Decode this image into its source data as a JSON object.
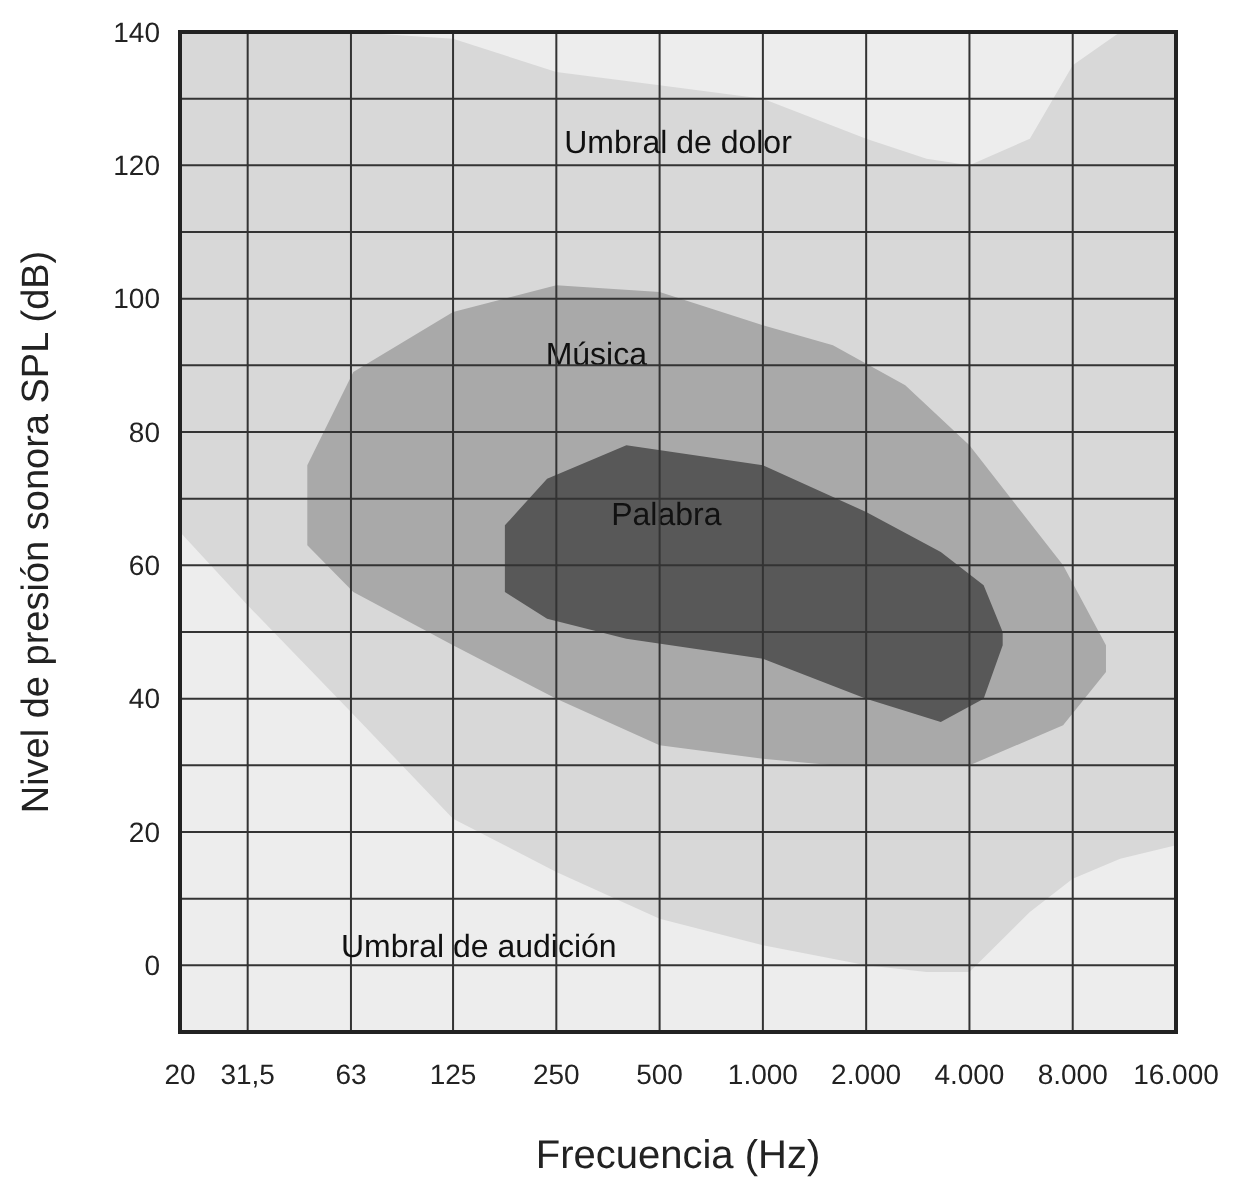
{
  "chart_data": {
    "type": "area",
    "xlabel": "Frecuencia  (Hz)",
    "ylabel": "Nivel de presión sonora SPL (dB)",
    "log": "x",
    "grid": true,
    "xlim": [
      20,
      16000
    ],
    "ylim": [
      -10,
      140
    ],
    "xticks": [
      20,
      {
        "value": 31.5,
        "label": "31,5"
      },
      63,
      125,
      250,
      500,
      {
        "value": 1000,
        "label": "1.000"
      },
      {
        "value": 2000,
        "label": "2.000"
      },
      {
        "value": 4000,
        "label": "4.000"
      },
      {
        "value": 8000,
        "label": "8.000"
      },
      {
        "value": 16000,
        "label": "16.000"
      }
    ],
    "yticks": [
      {
        "value": -10,
        "label": null
      },
      0,
      {
        "value": 10,
        "label": null
      },
      20,
      {
        "value": 30,
        "label": null
      },
      40,
      {
        "value": 50,
        "label": null
      },
      60,
      {
        "value": 70,
        "label": null
      },
      80,
      {
        "value": 90,
        "label": null
      },
      100,
      {
        "value": 110,
        "label": null
      },
      120,
      {
        "value": 130,
        "label": null
      },
      140
    ],
    "series": [
      {
        "x": [
          20,
          31.5,
          63,
          125,
          250,
          500,
          1000,
          2000,
          3000,
          4000,
          6000,
          8000,
          11000,
          16000
        ],
        "values": [
          null,
          null,
          null,
          null,
          null,
          null,
          null,
          null,
          null,
          null,
          null,
          null,
          null,
          null
        ],
        "upper": [
          140,
          140,
          140,
          139,
          134,
          132,
          130,
          124,
          121,
          120,
          124,
          135,
          140,
          140
        ],
        "lower": [
          65,
          54,
          38,
          22,
          14,
          7,
          3,
          0,
          -1,
          -1,
          8,
          13,
          16,
          18
        ]
      },
      {
        "name": "Música",
        "x": [
          47,
          64,
          125,
          250,
          500,
          1000,
          1600,
          2600,
          4000,
          7500,
          10000
        ],
        "values": [
          null,
          null,
          null,
          null,
          null,
          null,
          null,
          null,
          null,
          null,
          null
        ],
        "upper": [
          75,
          89,
          98,
          102,
          101,
          96,
          93,
          87,
          78,
          60,
          48
        ],
        "lower": [
          63,
          56,
          48,
          40,
          33,
          31,
          30,
          30,
          30,
          36,
          44
        ]
      },
      {
        "name": "Palabra",
        "x": [
          177,
          235,
          400,
          1000,
          2000,
          3300,
          4400,
          5000
        ],
        "values": [
          null,
          null,
          null,
          null,
          null,
          null,
          null,
          null
        ],
        "upper": [
          66,
          73,
          78,
          75,
          68,
          62,
          57,
          50
        ],
        "lower": [
          56,
          52,
          49,
          46,
          40,
          36.5,
          40,
          48
        ]
      }
    ],
    "annotations": [
      "Umbral de dolor",
      "Umbral de audición"
    ]
  }
}
